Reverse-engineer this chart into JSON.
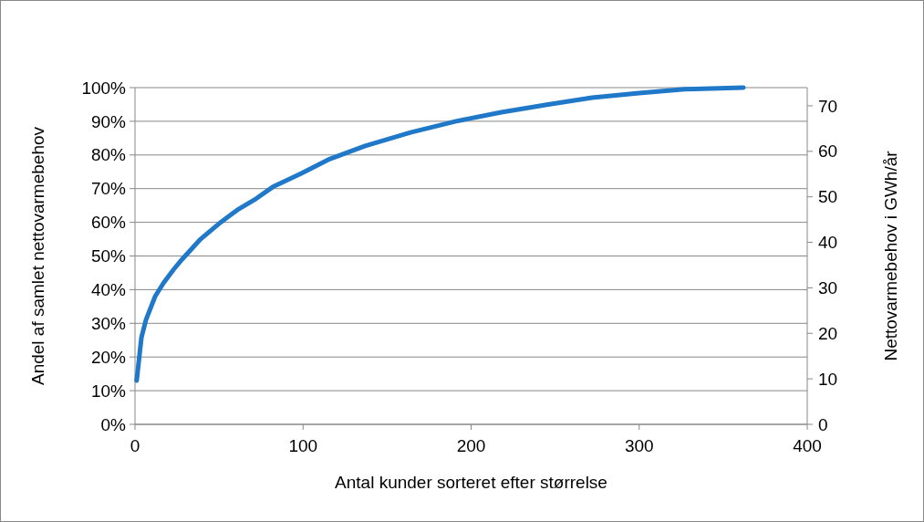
{
  "chart_data": {
    "type": "line",
    "xlabel": "Antal kunder sorteret efter størrelse",
    "ylabel": "Andel af samlet nettovarmebehov",
    "y2label": "Nettovarmebehov i GWh/år",
    "xlim": [
      0,
      400
    ],
    "xticks": [
      0,
      100,
      200,
      300,
      400
    ],
    "ylim": [
      0,
      1
    ],
    "yticks": [
      {
        "value": 0,
        "label": "0%"
      },
      {
        "value": 0.1,
        "label": "10%"
      },
      {
        "value": 0.2,
        "label": "20%"
      },
      {
        "value": 0.3,
        "label": "30%"
      },
      {
        "value": 0.4,
        "label": "40%"
      },
      {
        "value": 0.5,
        "label": "50%"
      },
      {
        "value": 0.6,
        "label": "60%"
      },
      {
        "value": 0.7,
        "label": "70%"
      },
      {
        "value": 0.8,
        "label": "80%"
      },
      {
        "value": 0.9,
        "label": "90%"
      },
      {
        "value": 1,
        "label": "100%"
      }
    ],
    "y2lim": [
      0,
      74
    ],
    "y2ticks": [
      0,
      10,
      20,
      30,
      40,
      50,
      60,
      70
    ],
    "grid": "y",
    "line_style": "solid",
    "series": [
      {
        "color": "#1f78c8",
        "x": [
          1,
          3.8,
          6.5,
          12,
          17,
          23,
          28,
          39,
          50,
          61,
          72,
          82,
          99,
          115,
          137,
          164,
          191,
          218,
          245,
          272,
          300,
          327,
          362
        ],
        "values": [
          0.13,
          0.257,
          0.31,
          0.38,
          0.42,
          0.46,
          0.49,
          0.55,
          0.596,
          0.637,
          0.67,
          0.705,
          0.745,
          0.786,
          0.827,
          0.867,
          0.9,
          0.927,
          0.949,
          0.97,
          0.984,
          0.995,
          1.0
        ]
      }
    ]
  }
}
